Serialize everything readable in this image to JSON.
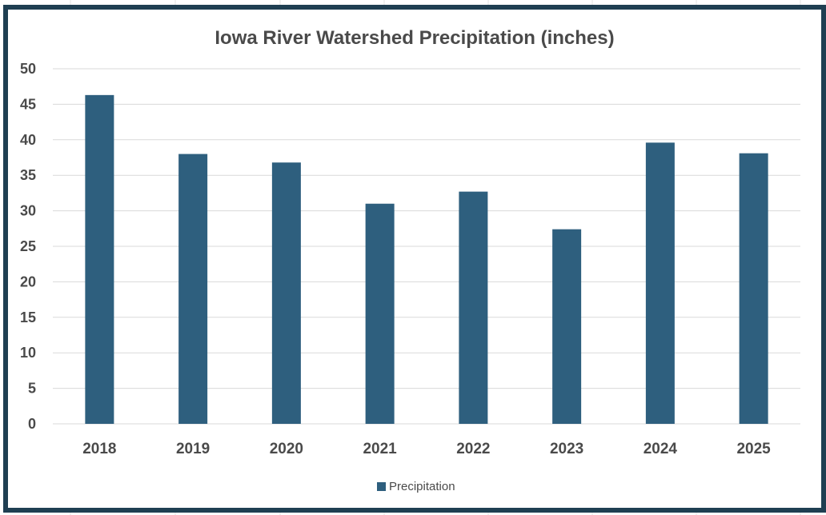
{
  "chart_data": {
    "type": "bar",
    "title": "Iowa River Watershed Precipitation  (inches)",
    "categories": [
      "2018",
      "2019",
      "2020",
      "2021",
      "2022",
      "2023",
      "2024",
      "2025"
    ],
    "series": [
      {
        "name": "Precipitation",
        "values": [
          46.3,
          38.0,
          36.8,
          31.0,
          32.7,
          27.4,
          39.6,
          38.1
        ],
        "color": "#2e5f7e"
      }
    ],
    "ylim": [
      0,
      50
    ],
    "yticks": [
      0,
      5,
      10,
      15,
      20,
      25,
      30,
      35,
      40,
      45,
      50
    ],
    "xlabel": "",
    "ylabel": "",
    "grid": true,
    "legend_position": "bottom"
  },
  "colors": {
    "frame": "#1f3f52",
    "gridline": "#d9d9d9",
    "text": "#4a4a4a"
  }
}
